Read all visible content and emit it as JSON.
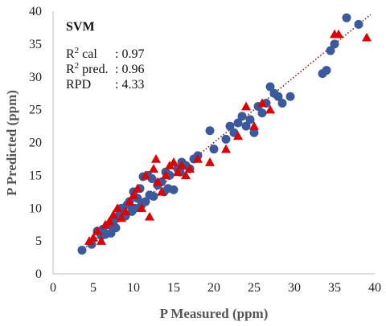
{
  "chart_data": {
    "type": "scatter",
    "title": "SVM",
    "xlabel": "P Measured (ppm)",
    "ylabel": "P Predicted (ppm)",
    "xlim": [
      0,
      40
    ],
    "ylim": [
      0,
      40
    ],
    "xticks": [
      0,
      5,
      10,
      15,
      20,
      25,
      30,
      35,
      40
    ],
    "yticks": [
      0,
      5,
      10,
      15,
      20,
      25,
      30,
      35,
      40
    ],
    "grid": false,
    "stats": [
      {
        "label_base": "R",
        "label_sup": "2",
        "label_rest": " cal",
        "value": ": 0.97"
      },
      {
        "label_base": "R",
        "label_sup": "2",
        "label_rest": " pred.",
        "value": ": 0.96"
      },
      {
        "label_base": "RPD",
        "label_sup": "",
        "label_rest": "",
        "value": ": 4.33"
      }
    ],
    "fit_line": {
      "x": [
        3.5,
        39.5
      ],
      "y": [
        3.5,
        39.5
      ],
      "style": "dotted",
      "color": "#8b1a1a"
    },
    "series": [
      {
        "marker": "circle",
        "color": "#3a5a9b",
        "x": [
          3.6,
          4.8,
          5.5,
          6.0,
          6.2,
          6.5,
          7.0,
          7.2,
          7.5,
          7.8,
          8.0,
          8.3,
          8.5,
          8.8,
          9.0,
          9.2,
          9.5,
          9.8,
          10.0,
          10.2,
          10.5,
          10.8,
          11.0,
          11.2,
          11.5,
          11.8,
          12.0,
          12.3,
          12.5,
          13.0,
          13.5,
          13.8,
          14.0,
          14.3,
          14.5,
          15.0,
          15.5,
          15.8,
          16.0,
          16.5,
          17.0,
          17.5,
          18.0,
          19.5,
          20.0,
          21.5,
          22.0,
          22.5,
          23.0,
          23.5,
          24.0,
          24.5,
          25.0,
          25.5,
          26.0,
          26.5,
          27.0,
          27.5,
          28.0,
          28.5,
          29.5,
          33.5,
          34.0,
          34.5,
          35.0,
          36.5,
          38.0
        ],
        "y": [
          3.6,
          4.5,
          6.5,
          5.8,
          6.8,
          6.0,
          7.5,
          6.2,
          8.0,
          7.0,
          8.5,
          9.2,
          10.0,
          9.0,
          8.8,
          10.5,
          11.0,
          9.5,
          12.5,
          10.0,
          11.5,
          13.0,
          10.5,
          14.8,
          11.0,
          15.0,
          12.0,
          14.5,
          11.8,
          13.5,
          14.0,
          12.5,
          15.5,
          13.0,
          15.0,
          12.8,
          16.0,
          15.5,
          17.0,
          16.5,
          16.0,
          17.5,
          18.0,
          21.8,
          19.0,
          20.5,
          22.5,
          21.5,
          23.0,
          24.0,
          22.5,
          23.5,
          21.5,
          25.5,
          24.5,
          26.0,
          28.5,
          27.5,
          27.0,
          26.0,
          27.0,
          30.5,
          31.0,
          34.0,
          35.0,
          39.0,
          38.0
        ]
      },
      {
        "marker": "triangle",
        "color": "#e00000",
        "x": [
          4.5,
          5.0,
          5.5,
          6.0,
          6.5,
          7.0,
          7.5,
          8.0,
          8.5,
          9.0,
          9.5,
          10.0,
          10.5,
          11.0,
          11.5,
          12.0,
          12.5,
          12.8,
          13.0,
          13.5,
          14.0,
          14.5,
          15.0,
          15.5,
          16.0,
          16.5,
          17.0,
          18.0,
          19.5,
          21.5,
          23.0,
          24.0,
          25.0,
          26.0,
          27.0,
          35.0,
          35.5,
          39.0
        ],
        "y": [
          5.0,
          5.5,
          6.5,
          5.0,
          7.5,
          8.0,
          9.0,
          10.0,
          8.5,
          9.5,
          11.0,
          12.0,
          13.0,
          10.0,
          15.0,
          8.7,
          16.0,
          17.5,
          14.0,
          12.5,
          15.0,
          16.5,
          17.0,
          15.5,
          16.5,
          15.0,
          16.0,
          17.5,
          17.0,
          19.0,
          21.0,
          25.5,
          22.5,
          26.0,
          25.0,
          36.5,
          36.5,
          36.0
        ]
      }
    ]
  }
}
